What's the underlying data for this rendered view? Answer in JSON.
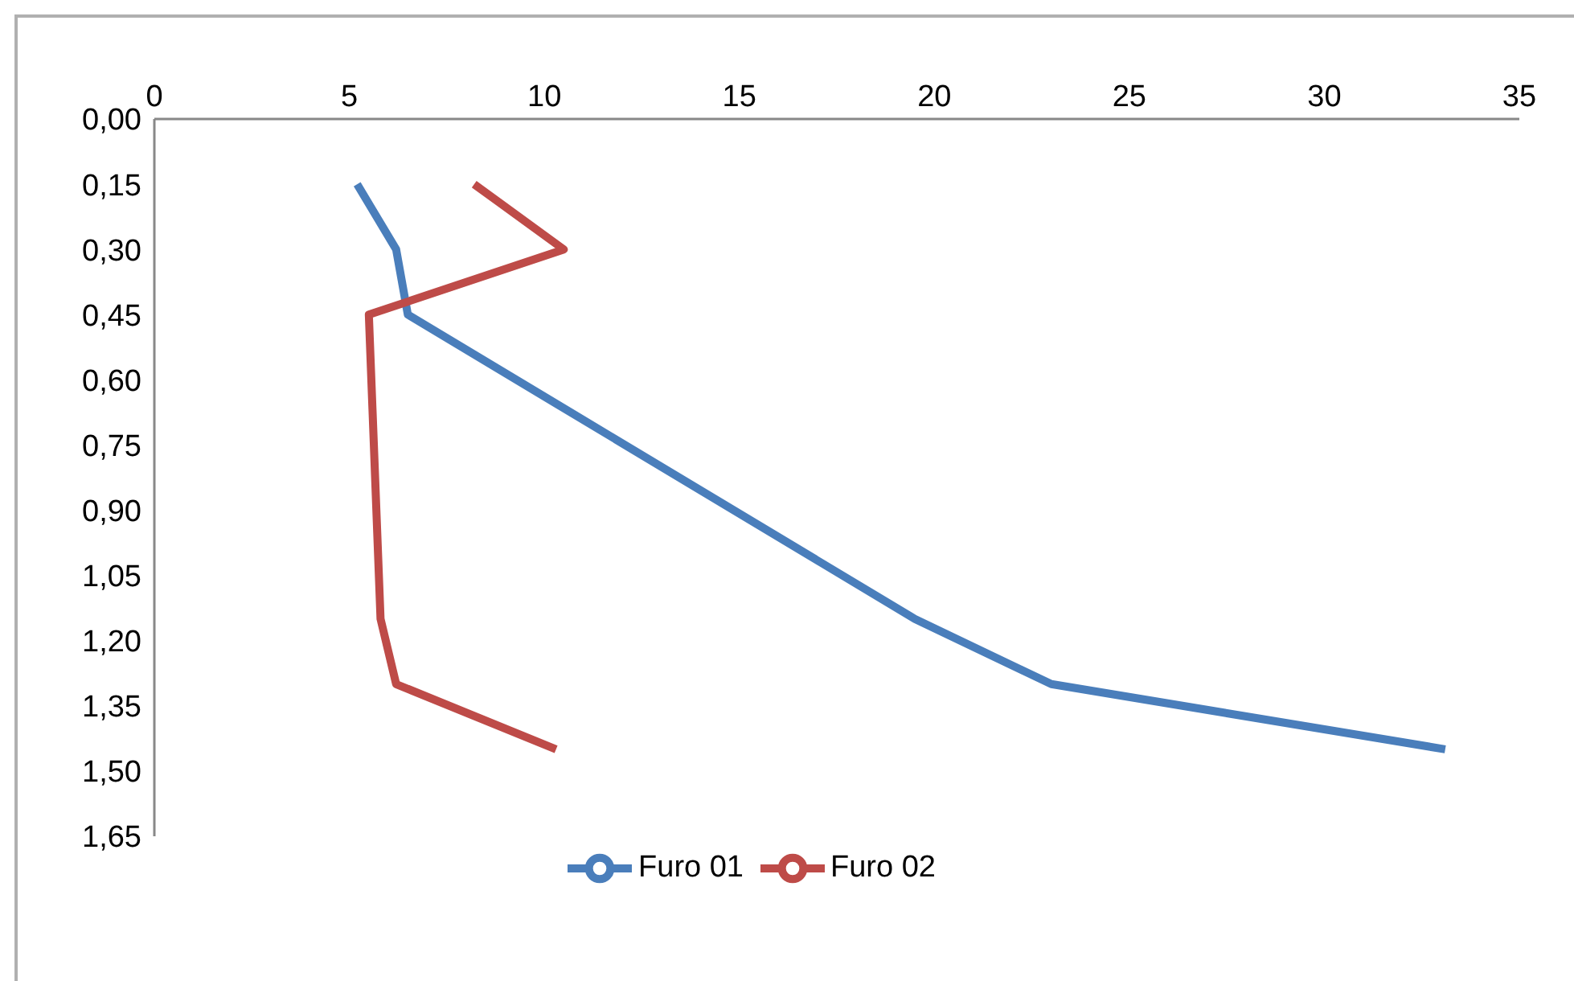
{
  "chart_data": {
    "type": "line",
    "xlim": [
      0,
      35
    ],
    "xticks": [
      0,
      5,
      10,
      15,
      20,
      25,
      30,
      35
    ],
    "ylim": [
      1.65,
      0
    ],
    "yticks": [
      {
        "value": 0,
        "label": "0,00"
      },
      {
        "value": 0.15,
        "label": "0,15"
      },
      {
        "value": 0.3,
        "label": "0,30"
      },
      {
        "value": 0.45,
        "label": "0,45"
      },
      {
        "value": 0.6,
        "label": "0,60"
      },
      {
        "value": 0.75,
        "label": "0,75"
      },
      {
        "value": 0.9,
        "label": "0,90"
      },
      {
        "value": 1.05,
        "label": "1,05"
      },
      {
        "value": 1.2,
        "label": "1,20"
      },
      {
        "value": 1.35,
        "label": "1,35"
      },
      {
        "value": 1.5,
        "label": "1,50"
      },
      {
        "value": 1.65,
        "label": "1,65"
      }
    ],
    "legend": "bottom",
    "grid": false,
    "marker": "none",
    "series": [
      {
        "name": "Furo 01",
        "color": "#4a7ebb",
        "x": [
          5.2,
          6.2,
          6.5,
          19.5,
          23,
          33.1
        ],
        "values": [
          0.15,
          0.3,
          0.45,
          1.15,
          1.3,
          1.45
        ]
      },
      {
        "name": "Furo 02",
        "color": "#be4b48",
        "x": [
          8.2,
          10.5,
          5.5,
          5.8,
          6.2,
          10.3
        ],
        "values": [
          0.15,
          0.3,
          0.45,
          1.15,
          1.3,
          1.45
        ]
      }
    ]
  }
}
